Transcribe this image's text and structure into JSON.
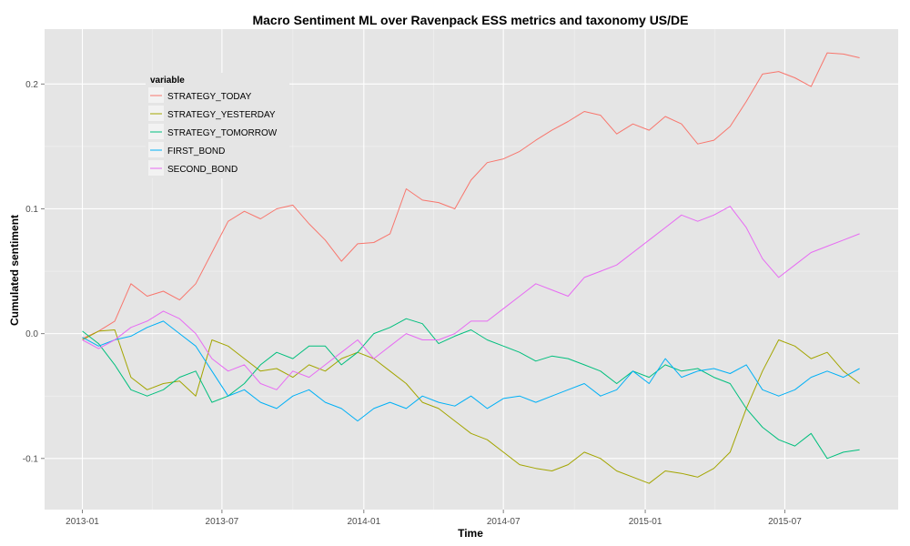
{
  "chart_data": {
    "type": "line",
    "title": "Macro Sentiment ML over Ravenpack ESS metrics and taxonomy US/DE",
    "xlabel": "Time",
    "ylabel": "Cumulated sentiment",
    "x_ticks": [
      "2013-01",
      "2013-07",
      "2014-01",
      "2014-07",
      "2015-01",
      "2015-07"
    ],
    "y_ticks": [
      "-0.1",
      "0.0",
      "0.1",
      "0.2"
    ],
    "y_tick_values": [
      -0.1,
      0.0,
      0.1,
      0.2
    ],
    "xlim": [
      "2012-11-13",
      "2015-11-25"
    ],
    "ylim": [
      -0.141,
      0.244
    ],
    "grid": true,
    "legend": {
      "title": "variable",
      "position": "top-left"
    },
    "series": [
      {
        "name": "STRATEGY_TODAY",
        "color": "#F8766D",
        "x": [
          "2013-01-01",
          "2013-01-22",
          "2013-02-12",
          "2013-03-05",
          "2013-03-26",
          "2013-04-16",
          "2013-05-07",
          "2013-05-28",
          "2013-06-18",
          "2013-07-09",
          "2013-07-30",
          "2013-08-20",
          "2013-09-10",
          "2013-10-01",
          "2013-10-22",
          "2013-11-12",
          "2013-12-03",
          "2013-12-24",
          "2014-01-14",
          "2014-02-04",
          "2014-02-25",
          "2014-03-18",
          "2014-04-08",
          "2014-04-29",
          "2014-05-20",
          "2014-06-10",
          "2014-07-01",
          "2014-07-22",
          "2014-08-12",
          "2014-09-02",
          "2014-09-23",
          "2014-10-14",
          "2014-11-04",
          "2014-11-25",
          "2014-12-16",
          "2015-01-06",
          "2015-01-27",
          "2015-02-17",
          "2015-03-10",
          "2015-03-31",
          "2015-04-21",
          "2015-05-12",
          "2015-06-02",
          "2015-06-23",
          "2015-07-14",
          "2015-08-04",
          "2015-08-25",
          "2015-09-15",
          "2015-10-06"
        ],
        "values": [
          -0.004,
          0.002,
          0.01,
          0.04,
          0.03,
          0.034,
          0.027,
          0.04,
          0.065,
          0.09,
          0.098,
          0.092,
          0.1,
          0.103,
          0.088,
          0.075,
          0.058,
          0.072,
          0.073,
          0.08,
          0.116,
          0.107,
          0.105,
          0.1,
          0.123,
          0.137,
          0.14,
          0.146,
          0.155,
          0.163,
          0.17,
          0.178,
          0.175,
          0.16,
          0.168,
          0.163,
          0.174,
          0.168,
          0.152,
          0.155,
          0.166,
          0.186,
          0.208,
          0.21,
          0.205,
          0.198,
          0.225,
          0.224,
          0.221
        ]
      },
      {
        "name": "STRATEGY_YESTERDAY",
        "color": "#A3A500",
        "x": [
          "2013-01-01",
          "2013-01-22",
          "2013-02-12",
          "2013-03-05",
          "2013-03-26",
          "2013-04-16",
          "2013-05-07",
          "2013-05-28",
          "2013-06-18",
          "2013-07-09",
          "2013-07-30",
          "2013-08-20",
          "2013-09-10",
          "2013-10-01",
          "2013-10-22",
          "2013-11-12",
          "2013-12-03",
          "2013-12-24",
          "2014-01-14",
          "2014-02-04",
          "2014-02-25",
          "2014-03-18",
          "2014-04-08",
          "2014-04-29",
          "2014-05-20",
          "2014-06-10",
          "2014-07-01",
          "2014-07-22",
          "2014-08-12",
          "2014-09-02",
          "2014-09-23",
          "2014-10-14",
          "2014-11-04",
          "2014-11-25",
          "2014-12-16",
          "2015-01-06",
          "2015-01-27",
          "2015-02-17",
          "2015-03-10",
          "2015-03-31",
          "2015-04-21",
          "2015-05-12",
          "2015-06-02",
          "2015-06-23",
          "2015-07-14",
          "2015-08-04",
          "2015-08-25",
          "2015-09-15",
          "2015-10-06"
        ],
        "values": [
          -0.005,
          0.002,
          0.003,
          -0.035,
          -0.045,
          -0.04,
          -0.038,
          -0.05,
          -0.005,
          -0.01,
          -0.02,
          -0.03,
          -0.028,
          -0.035,
          -0.025,
          -0.03,
          -0.02,
          -0.015,
          -0.02,
          -0.03,
          -0.04,
          -0.055,
          -0.06,
          -0.07,
          -0.08,
          -0.085,
          -0.095,
          -0.105,
          -0.108,
          -0.11,
          -0.105,
          -0.095,
          -0.1,
          -0.11,
          -0.115,
          -0.12,
          -0.11,
          -0.112,
          -0.115,
          -0.108,
          -0.095,
          -0.06,
          -0.03,
          -0.005,
          -0.01,
          -0.02,
          -0.015,
          -0.03,
          -0.04
        ]
      },
      {
        "name": "STRATEGY_TOMORROW",
        "color": "#00BF7D",
        "x": [
          "2013-01-01",
          "2013-01-22",
          "2013-02-12",
          "2013-03-05",
          "2013-03-26",
          "2013-04-16",
          "2013-05-07",
          "2013-05-28",
          "2013-06-18",
          "2013-07-09",
          "2013-07-30",
          "2013-08-20",
          "2013-09-10",
          "2013-10-01",
          "2013-10-22",
          "2013-11-12",
          "2013-12-03",
          "2013-12-24",
          "2014-01-14",
          "2014-02-04",
          "2014-02-25",
          "2014-03-18",
          "2014-04-08",
          "2014-04-29",
          "2014-05-20",
          "2014-06-10",
          "2014-07-01",
          "2014-07-22",
          "2014-08-12",
          "2014-09-02",
          "2014-09-23",
          "2014-10-14",
          "2014-11-04",
          "2014-11-25",
          "2014-12-16",
          "2015-01-06",
          "2015-01-27",
          "2015-02-17",
          "2015-03-10",
          "2015-03-31",
          "2015-04-21",
          "2015-05-12",
          "2015-06-02",
          "2015-06-23",
          "2015-07-14",
          "2015-08-04",
          "2015-08-25",
          "2015-09-15",
          "2015-10-06"
        ],
        "values": [
          0.002,
          -0.008,
          -0.025,
          -0.045,
          -0.05,
          -0.045,
          -0.035,
          -0.03,
          -0.055,
          -0.05,
          -0.04,
          -0.025,
          -0.015,
          -0.02,
          -0.01,
          -0.01,
          -0.025,
          -0.015,
          0.0,
          0.005,
          0.012,
          0.008,
          -0.008,
          -0.002,
          0.003,
          -0.005,
          -0.01,
          -0.015,
          -0.022,
          -0.018,
          -0.02,
          -0.025,
          -0.03,
          -0.04,
          -0.03,
          -0.035,
          -0.025,
          -0.03,
          -0.028,
          -0.035,
          -0.04,
          -0.06,
          -0.075,
          -0.085,
          -0.09,
          -0.08,
          -0.1,
          -0.095,
          -0.093
        ]
      },
      {
        "name": "FIRST_BOND",
        "color": "#00B0F6",
        "x": [
          "2013-01-01",
          "2013-01-22",
          "2013-02-12",
          "2013-03-05",
          "2013-03-26",
          "2013-04-16",
          "2013-05-07",
          "2013-05-28",
          "2013-06-18",
          "2013-07-09",
          "2013-07-30",
          "2013-08-20",
          "2013-09-10",
          "2013-10-01",
          "2013-10-22",
          "2013-11-12",
          "2013-12-03",
          "2013-12-24",
          "2014-01-14",
          "2014-02-04",
          "2014-02-25",
          "2014-03-18",
          "2014-04-08",
          "2014-04-29",
          "2014-05-20",
          "2014-06-10",
          "2014-07-01",
          "2014-07-22",
          "2014-08-12",
          "2014-09-02",
          "2014-09-23",
          "2014-10-14",
          "2014-11-04",
          "2014-11-25",
          "2014-12-16",
          "2015-01-06",
          "2015-01-27",
          "2015-02-17",
          "2015-03-10",
          "2015-03-31",
          "2015-04-21",
          "2015-05-12",
          "2015-06-02",
          "2015-06-23",
          "2015-07-14",
          "2015-08-04",
          "2015-08-25",
          "2015-09-15",
          "2015-10-06"
        ],
        "values": [
          -0.003,
          -0.01,
          -0.005,
          -0.002,
          0.005,
          0.01,
          0.0,
          -0.01,
          -0.03,
          -0.05,
          -0.045,
          -0.055,
          -0.06,
          -0.05,
          -0.045,
          -0.055,
          -0.06,
          -0.07,
          -0.06,
          -0.055,
          -0.06,
          -0.05,
          -0.055,
          -0.058,
          -0.05,
          -0.06,
          -0.052,
          -0.05,
          -0.055,
          -0.05,
          -0.045,
          -0.04,
          -0.05,
          -0.045,
          -0.03,
          -0.04,
          -0.02,
          -0.035,
          -0.03,
          -0.028,
          -0.032,
          -0.025,
          -0.045,
          -0.05,
          -0.045,
          -0.035,
          -0.03,
          -0.035,
          -0.028
        ]
      },
      {
        "name": "SECOND_BOND",
        "color": "#E76BF3",
        "x": [
          "2013-01-01",
          "2013-01-22",
          "2013-02-12",
          "2013-03-05",
          "2013-03-26",
          "2013-04-16",
          "2013-05-07",
          "2013-05-28",
          "2013-06-18",
          "2013-07-09",
          "2013-07-30",
          "2013-08-20",
          "2013-09-10",
          "2013-10-01",
          "2013-10-22",
          "2013-11-12",
          "2013-12-03",
          "2013-12-24",
          "2014-01-14",
          "2014-02-04",
          "2014-02-25",
          "2014-03-18",
          "2014-04-08",
          "2014-04-29",
          "2014-05-20",
          "2014-06-10",
          "2014-07-01",
          "2014-07-22",
          "2014-08-12",
          "2014-09-02",
          "2014-09-23",
          "2014-10-14",
          "2014-11-04",
          "2014-11-25",
          "2014-12-16",
          "2015-01-06",
          "2015-01-27",
          "2015-02-17",
          "2015-03-10",
          "2015-03-31",
          "2015-04-21",
          "2015-05-12",
          "2015-06-02",
          "2015-06-23",
          "2015-07-14",
          "2015-08-04",
          "2015-08-25",
          "2015-09-15",
          "2015-10-06"
        ],
        "values": [
          -0.005,
          -0.012,
          -0.005,
          0.005,
          0.01,
          0.018,
          0.012,
          0.0,
          -0.02,
          -0.03,
          -0.025,
          -0.04,
          -0.045,
          -0.03,
          -0.035,
          -0.025,
          -0.015,
          -0.005,
          -0.02,
          -0.01,
          0.0,
          -0.005,
          -0.005,
          0.0,
          0.01,
          0.01,
          0.02,
          0.03,
          0.04,
          0.035,
          0.03,
          0.045,
          0.05,
          0.055,
          0.065,
          0.075,
          0.085,
          0.095,
          0.09,
          0.095,
          0.102,
          0.085,
          0.06,
          0.045,
          0.055,
          0.065,
          0.07,
          0.075,
          0.08
        ]
      }
    ]
  }
}
